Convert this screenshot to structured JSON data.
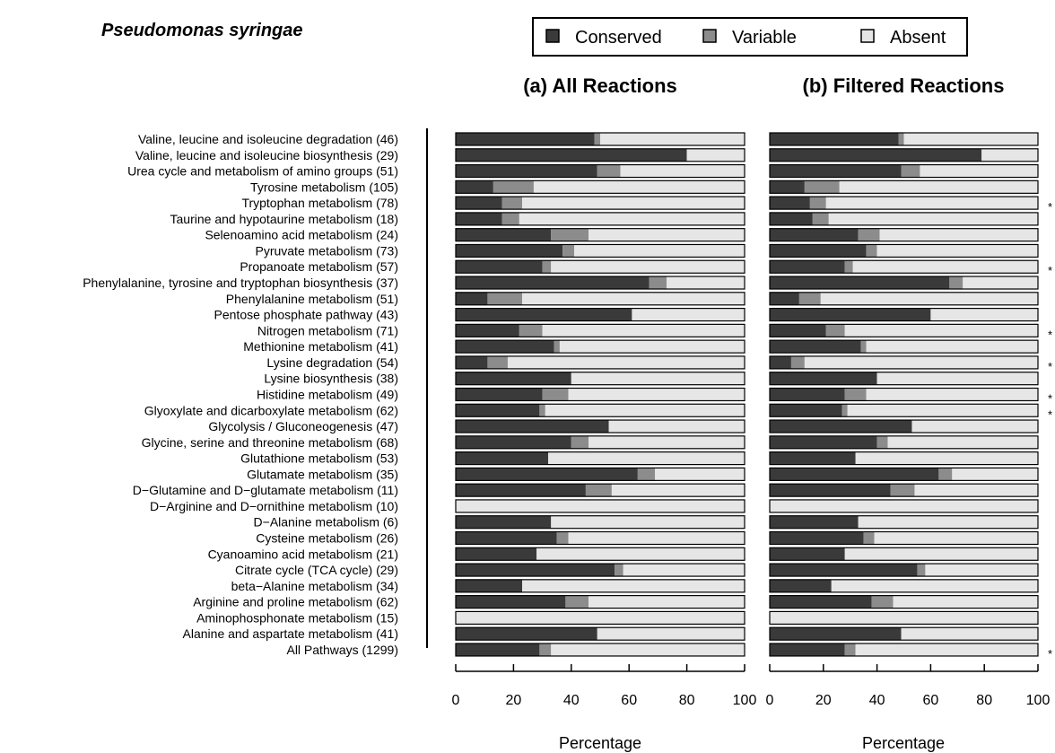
{
  "chart_data": {
    "type": "bar",
    "stacked": true,
    "orientation": "horizontal",
    "title": "Pseudomonas syringae",
    "xlabel": "Percentage",
    "xlim": [
      0,
      100
    ],
    "xticks": [
      0,
      20,
      40,
      60,
      80,
      100
    ],
    "legend": {
      "placement": "top",
      "entries": [
        "Conserved",
        "Variable",
        "Absent"
      ]
    },
    "colors": {
      "Conserved": "#3a3a3a",
      "Variable": "#8c8c8c",
      "Absent": "#e6e6e6"
    },
    "categories": [
      "Valine, leucine and isoleucine degradation (46)",
      "Valine, leucine and isoleucine biosynthesis (29)",
      "Urea cycle and metabolism of amino groups (51)",
      "Tyrosine metabolism (105)",
      "Tryptophan metabolism (78)",
      "Taurine and hypotaurine metabolism (18)",
      "Selenoamino acid metabolism (24)",
      "Pyruvate metabolism (73)",
      "Propanoate metabolism (57)",
      "Phenylalanine, tyrosine and tryptophan biosynthesis (37)",
      "Phenylalanine metabolism (51)",
      "Pentose phosphate pathway (43)",
      "Nitrogen metabolism (71)",
      "Methionine metabolism (41)",
      "Lysine degradation (54)",
      "Lysine biosynthesis (38)",
      "Histidine metabolism (49)",
      "Glyoxylate and dicarboxylate metabolism (62)",
      "Glycolysis / Gluconeogenesis (47)",
      "Glycine, serine and threonine metabolism (68)",
      "Glutathione metabolism (53)",
      "Glutamate metabolism (35)",
      "D−Glutamine and D−glutamate metabolism (11)",
      "D−Arginine and D−ornithine metabolism (10)",
      "D−Alanine metabolism (6)",
      "Cysteine metabolism (26)",
      "Cyanoamino acid metabolism (21)",
      "Citrate cycle (TCA cycle) (29)",
      "beta−Alanine metabolism (34)",
      "Arginine and proline metabolism (62)",
      "Aminophosphonate metabolism (15)",
      "Alanine and aspartate metabolism (41)",
      "All Pathways (1299)"
    ],
    "panels": [
      {
        "title": "(a) All Reactions",
        "series": [
          {
            "name": "Conserved",
            "values": [
              48,
              80,
              49,
              13,
              16,
              16,
              33,
              37,
              30,
              67,
              11,
              61,
              22,
              34,
              11,
              40,
              30,
              29,
              53,
              40,
              32,
              63,
              45,
              0,
              33,
              35,
              28,
              55,
              23,
              38,
              0,
              49,
              29
            ]
          },
          {
            "name": "Variable",
            "values": [
              2,
              0,
              8,
              14,
              7,
              6,
              13,
              4,
              3,
              6,
              12,
              0,
              8,
              2,
              7,
              0,
              9,
              2,
              0,
              6,
              0,
              6,
              9,
              0,
              0,
              4,
              0,
              3,
              0,
              8,
              0,
              0,
              4
            ]
          },
          {
            "name": "Absent",
            "values": [
              50,
              20,
              43,
              73,
              77,
              78,
              54,
              59,
              67,
              27,
              77,
              39,
              70,
              64,
              82,
              60,
              61,
              69,
              47,
              54,
              68,
              31,
              46,
              100,
              67,
              61,
              72,
              42,
              77,
              54,
              100,
              51,
              67
            ]
          }
        ]
      },
      {
        "title": "(b) Filtered Reactions",
        "series": [
          {
            "name": "Conserved",
            "values": [
              48,
              79,
              49,
              13,
              15,
              16,
              33,
              36,
              28,
              67,
              11,
              60,
              21,
              34,
              8,
              40,
              28,
              27,
              53,
              40,
              32,
              63,
              45,
              0,
              33,
              35,
              28,
              55,
              23,
              38,
              0,
              49,
              28
            ]
          },
          {
            "name": "Variable",
            "values": [
              2,
              0,
              7,
              13,
              6,
              6,
              8,
              4,
              3,
              5,
              8,
              0,
              7,
              2,
              5,
              0,
              8,
              2,
              0,
              4,
              0,
              5,
              9,
              0,
              0,
              4,
              0,
              3,
              0,
              8,
              0,
              0,
              4
            ]
          },
          {
            "name": "Absent",
            "values": [
              50,
              21,
              44,
              74,
              79,
              78,
              59,
              60,
              69,
              28,
              81,
              40,
              72,
              64,
              87,
              60,
              64,
              71,
              47,
              56,
              68,
              32,
              46,
              100,
              67,
              61,
              72,
              42,
              77,
              54,
              100,
              51,
              68
            ]
          }
        ]
      }
    ],
    "annotations": [
      {
        "text": "*",
        "category_index": 4
      },
      {
        "text": "*",
        "category_index": 8
      },
      {
        "text": "*",
        "category_index": 12
      },
      {
        "text": "*",
        "category_index": 14
      },
      {
        "text": "*",
        "category_index": 16
      },
      {
        "text": "*",
        "category_index": 17
      },
      {
        "text": "*",
        "category_index": 32
      }
    ]
  }
}
